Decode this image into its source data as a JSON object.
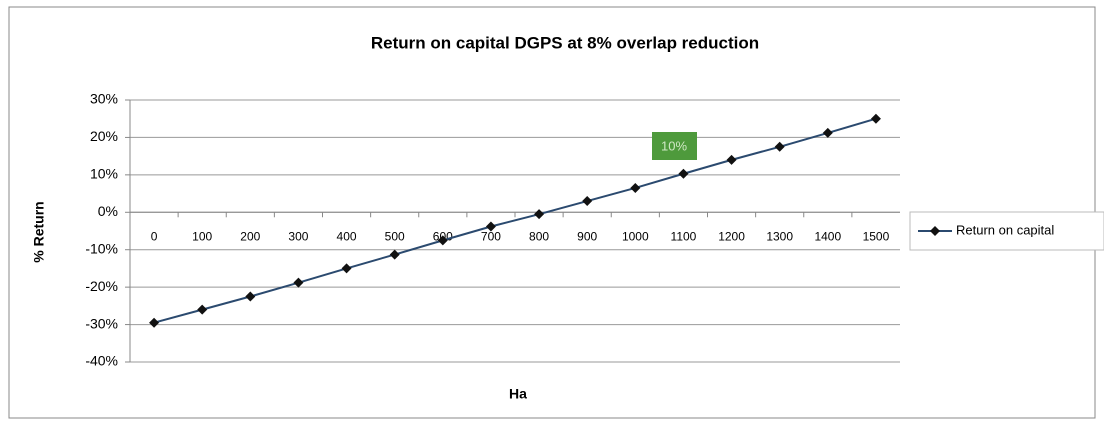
{
  "chart_data": {
    "type": "line",
    "title": "Return on capital DGPS at 8% overlap reduction",
    "x_label": "Ha",
    "y_label": "% Return",
    "categories": [
      "0",
      "100",
      "200",
      "300",
      "400",
      "500",
      "600",
      "700",
      "800",
      "900",
      "1000",
      "1100",
      "1200",
      "1300",
      "1400",
      "1500"
    ],
    "series": [
      {
        "name": "Return on capital",
        "color": "#2b4a6f",
        "values": [
          -29.5,
          -26,
          -22.5,
          -18.8,
          -15,
          -11.3,
          -7.5,
          -3.8,
          -0.5,
          3,
          6.5,
          10.3,
          14,
          17.5,
          21.2,
          25
        ]
      }
    ],
    "ylim": [
      -40,
      30
    ],
    "yticks": [
      {
        "value": -40,
        "label": "-40%"
      },
      {
        "value": -30,
        "label": "-30%"
      },
      {
        "value": -20,
        "label": "-20%"
      },
      {
        "value": -10,
        "label": "-10%"
      },
      {
        "value": 0,
        "label": "0%"
      },
      {
        "value": 10,
        "label": "10%"
      },
      {
        "value": 20,
        "label": "20%"
      },
      {
        "value": 30,
        "label": "30%"
      }
    ],
    "grid": true,
    "legend": "right",
    "annotation": "10%"
  }
}
